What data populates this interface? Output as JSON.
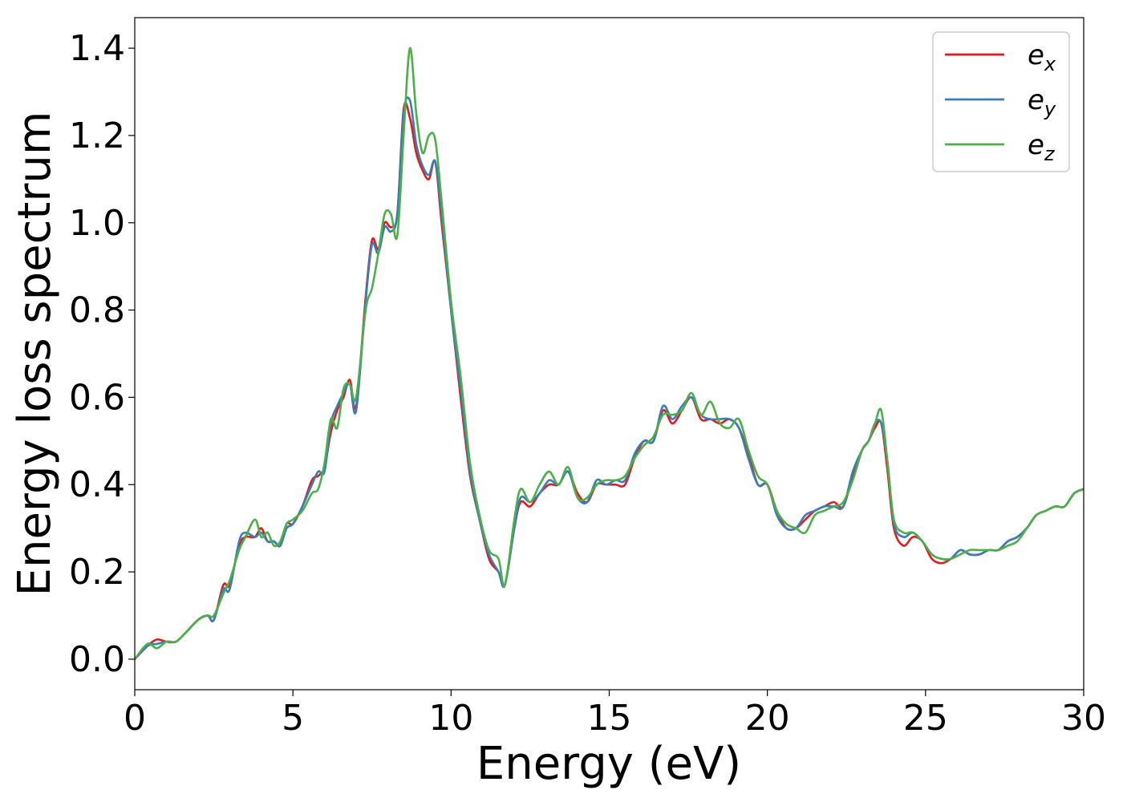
{
  "chart_data": {
    "type": "line",
    "xlabel": "Energy (eV)",
    "ylabel": "Energy loss spectrum",
    "xlim": [
      0,
      30
    ],
    "ylim": [
      -0.07,
      1.47
    ],
    "xticks": [
      0,
      5,
      10,
      15,
      20,
      25,
      30
    ],
    "xtick_labels": [
      "0",
      "5",
      "10",
      "15",
      "20",
      "25",
      "30"
    ],
    "yticks": [
      0.0,
      0.2,
      0.4,
      0.6,
      0.8,
      1.0,
      1.2,
      1.4
    ],
    "ytick_labels": [
      "0.0",
      "0.2",
      "0.4",
      "0.6",
      "0.8",
      "1.0",
      "1.2",
      "1.4"
    ],
    "grid": false,
    "legend": "top-right",
    "series": [
      {
        "name": "ex",
        "label_base": "e",
        "label_sub": "x",
        "color": "#e41a1c",
        "x": [
          0,
          0.4,
          0.7,
          1.0,
          1.3,
          1.6,
          2.0,
          2.3,
          2.5,
          2.8,
          3.0,
          3.3,
          3.5,
          3.8,
          4.0,
          4.2,
          4.4,
          4.6,
          4.8,
          5.0,
          5.3,
          5.6,
          5.8,
          6.0,
          6.2,
          6.4,
          6.6,
          6.8,
          7.0,
          7.3,
          7.5,
          7.7,
          7.9,
          8.1,
          8.3,
          8.5,
          8.7,
          8.9,
          9.1,
          9.3,
          9.5,
          9.7,
          10.0,
          10.3,
          10.6,
          10.9,
          11.2,
          11.5,
          11.7,
          12.0,
          12.2,
          12.5,
          12.8,
          13.1,
          13.4,
          13.7,
          14.0,
          14.3,
          14.6,
          14.9,
          15.2,
          15.5,
          15.8,
          16.1,
          16.4,
          16.7,
          17.0,
          17.3,
          17.6,
          17.9,
          18.2,
          18.5,
          18.8,
          19.1,
          19.4,
          19.7,
          20.0,
          20.3,
          20.6,
          20.9,
          21.2,
          21.5,
          21.8,
          22.1,
          22.4,
          22.7,
          23.0,
          23.2,
          23.4,
          23.6,
          23.8,
          24.0,
          24.3,
          24.6,
          24.9,
          25.2,
          25.5,
          25.8,
          26.1,
          26.4,
          26.7,
          27.0,
          27.3,
          27.6,
          27.9,
          28.2,
          28.5,
          28.8,
          29.1,
          29.4,
          29.7,
          30.0
        ],
        "values": [
          0.0,
          0.03,
          0.045,
          0.04,
          0.04,
          0.06,
          0.09,
          0.1,
          0.09,
          0.17,
          0.17,
          0.26,
          0.28,
          0.28,
          0.3,
          0.27,
          0.27,
          0.26,
          0.31,
          0.31,
          0.35,
          0.41,
          0.42,
          0.44,
          0.52,
          0.57,
          0.6,
          0.64,
          0.58,
          0.83,
          0.96,
          0.94,
          1.0,
          0.99,
          1.02,
          1.26,
          1.24,
          1.16,
          1.12,
          1.1,
          1.14,
          1.0,
          0.8,
          0.6,
          0.42,
          0.32,
          0.23,
          0.2,
          0.17,
          0.3,
          0.36,
          0.35,
          0.38,
          0.4,
          0.4,
          0.43,
          0.38,
          0.36,
          0.4,
          0.4,
          0.4,
          0.4,
          0.46,
          0.5,
          0.5,
          0.57,
          0.54,
          0.57,
          0.6,
          0.55,
          0.55,
          0.54,
          0.55,
          0.53,
          0.47,
          0.4,
          0.4,
          0.34,
          0.3,
          0.3,
          0.32,
          0.34,
          0.35,
          0.36,
          0.35,
          0.42,
          0.48,
          0.5,
          0.53,
          0.54,
          0.43,
          0.3,
          0.26,
          0.28,
          0.27,
          0.23,
          0.22,
          0.23,
          0.25,
          0.24,
          0.24,
          0.25,
          0.25,
          0.27,
          0.28,
          0.3,
          0.33,
          0.34,
          0.35,
          0.35,
          0.38,
          0.39
        ]
      },
      {
        "name": "ey",
        "label_base": "e",
        "label_sub": "y",
        "color": "#377eb8",
        "x": [
          0,
          0.4,
          0.7,
          1.0,
          1.3,
          1.6,
          2.0,
          2.3,
          2.5,
          2.8,
          3.0,
          3.3,
          3.5,
          3.8,
          4.0,
          4.2,
          4.4,
          4.6,
          4.8,
          5.0,
          5.3,
          5.6,
          5.8,
          6.0,
          6.2,
          6.4,
          6.6,
          6.8,
          7.0,
          7.3,
          7.5,
          7.7,
          7.9,
          8.1,
          8.3,
          8.5,
          8.7,
          8.9,
          9.1,
          9.3,
          9.5,
          9.7,
          10.0,
          10.3,
          10.6,
          10.9,
          11.2,
          11.5,
          11.7,
          12.0,
          12.2,
          12.5,
          12.8,
          13.1,
          13.4,
          13.7,
          14.0,
          14.3,
          14.6,
          14.9,
          15.2,
          15.5,
          15.8,
          16.1,
          16.4,
          16.7,
          17.0,
          17.3,
          17.6,
          17.9,
          18.2,
          18.5,
          18.8,
          19.1,
          19.4,
          19.7,
          20.0,
          20.3,
          20.6,
          20.9,
          21.2,
          21.5,
          21.8,
          22.1,
          22.4,
          22.7,
          23.0,
          23.2,
          23.4,
          23.6,
          23.8,
          24.0,
          24.3,
          24.6,
          24.9,
          25.2,
          25.5,
          25.8,
          26.1,
          26.4,
          26.7,
          27.0,
          27.3,
          27.6,
          27.9,
          28.2,
          28.5,
          28.8,
          29.1,
          29.4,
          29.7,
          30.0
        ],
        "values": [
          0.0,
          0.03,
          0.035,
          0.04,
          0.04,
          0.06,
          0.09,
          0.1,
          0.09,
          0.16,
          0.16,
          0.27,
          0.29,
          0.28,
          0.29,
          0.27,
          0.27,
          0.26,
          0.3,
          0.31,
          0.35,
          0.4,
          0.43,
          0.43,
          0.54,
          0.58,
          0.61,
          0.63,
          0.57,
          0.82,
          0.95,
          0.93,
          0.99,
          0.98,
          1.02,
          1.25,
          1.28,
          1.18,
          1.13,
          1.11,
          1.14,
          1.02,
          0.8,
          0.62,
          0.43,
          0.32,
          0.24,
          0.2,
          0.17,
          0.3,
          0.37,
          0.36,
          0.38,
          0.41,
          0.4,
          0.43,
          0.37,
          0.36,
          0.41,
          0.4,
          0.41,
          0.41,
          0.47,
          0.5,
          0.5,
          0.58,
          0.55,
          0.58,
          0.6,
          0.56,
          0.55,
          0.55,
          0.55,
          0.53,
          0.46,
          0.4,
          0.4,
          0.33,
          0.3,
          0.3,
          0.33,
          0.34,
          0.35,
          0.35,
          0.35,
          0.43,
          0.48,
          0.5,
          0.54,
          0.54,
          0.45,
          0.31,
          0.28,
          0.29,
          0.27,
          0.24,
          0.23,
          0.23,
          0.25,
          0.24,
          0.24,
          0.25,
          0.25,
          0.27,
          0.28,
          0.3,
          0.33,
          0.34,
          0.35,
          0.35,
          0.38,
          0.39
        ]
      },
      {
        "name": "ez",
        "label_base": "e",
        "label_sub": "z",
        "color": "#4daf4a",
        "x": [
          0,
          0.4,
          0.7,
          1.0,
          1.3,
          1.6,
          2.0,
          2.3,
          2.5,
          2.8,
          3.0,
          3.3,
          3.5,
          3.8,
          4.0,
          4.2,
          4.4,
          4.6,
          4.8,
          5.0,
          5.3,
          5.6,
          5.8,
          6.0,
          6.2,
          6.4,
          6.6,
          6.8,
          7.0,
          7.3,
          7.5,
          7.7,
          7.9,
          8.1,
          8.3,
          8.5,
          8.7,
          8.9,
          9.1,
          9.3,
          9.5,
          9.7,
          10.0,
          10.3,
          10.6,
          10.9,
          11.2,
          11.5,
          11.7,
          12.0,
          12.2,
          12.5,
          12.8,
          13.1,
          13.4,
          13.7,
          14.0,
          14.3,
          14.6,
          14.9,
          15.2,
          15.5,
          15.8,
          16.1,
          16.4,
          16.7,
          17.0,
          17.3,
          17.6,
          17.9,
          18.2,
          18.5,
          18.8,
          19.1,
          19.4,
          19.7,
          20.0,
          20.3,
          20.6,
          20.9,
          21.2,
          21.5,
          21.8,
          22.1,
          22.4,
          22.7,
          23.0,
          23.2,
          23.4,
          23.6,
          23.8,
          24.0,
          24.3,
          24.6,
          24.9,
          25.2,
          25.5,
          25.8,
          26.1,
          26.4,
          26.7,
          27.0,
          27.3,
          27.6,
          27.9,
          28.2,
          28.5,
          28.8,
          29.1,
          29.4,
          29.7,
          30.0
        ],
        "values": [
          0.0,
          0.035,
          0.025,
          0.04,
          0.04,
          0.06,
          0.09,
          0.1,
          0.1,
          0.15,
          0.18,
          0.25,
          0.28,
          0.32,
          0.28,
          0.29,
          0.26,
          0.27,
          0.31,
          0.32,
          0.34,
          0.38,
          0.39,
          0.45,
          0.55,
          0.53,
          0.62,
          0.63,
          0.6,
          0.8,
          0.85,
          0.93,
          1.02,
          1.02,
          0.97,
          1.2,
          1.4,
          1.25,
          1.16,
          1.2,
          1.19,
          1.05,
          0.82,
          0.65,
          0.45,
          0.33,
          0.25,
          0.23,
          0.17,
          0.32,
          0.39,
          0.36,
          0.4,
          0.43,
          0.4,
          0.44,
          0.37,
          0.37,
          0.4,
          0.41,
          0.41,
          0.42,
          0.46,
          0.49,
          0.51,
          0.56,
          0.56,
          0.57,
          0.61,
          0.56,
          0.59,
          0.54,
          0.53,
          0.55,
          0.48,
          0.42,
          0.4,
          0.34,
          0.31,
          0.3,
          0.29,
          0.33,
          0.34,
          0.35,
          0.36,
          0.41,
          0.48,
          0.5,
          0.54,
          0.57,
          0.45,
          0.32,
          0.29,
          0.29,
          0.27,
          0.24,
          0.23,
          0.23,
          0.24,
          0.25,
          0.25,
          0.25,
          0.25,
          0.26,
          0.27,
          0.3,
          0.33,
          0.34,
          0.35,
          0.35,
          0.38,
          0.39
        ]
      }
    ]
  }
}
